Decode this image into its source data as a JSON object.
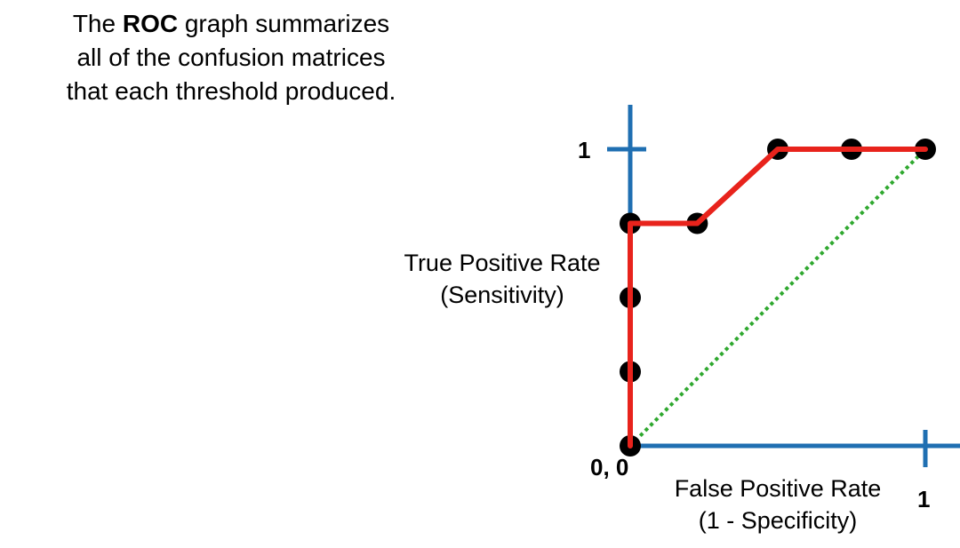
{
  "caption": {
    "line1_pre": "The ",
    "line1_bold": "ROC",
    "line1_post": " graph summarizes",
    "line2": "all of the confusion matrices",
    "line3": "that each threshold produced."
  },
  "chart_data": {
    "type": "line",
    "ylabel_line1": "True Positive Rate",
    "ylabel_line2": "(Sensitivity)",
    "xlabel_line1": "False Positive Rate",
    "xlabel_line2": "(1 - Specificity)",
    "origin_label": "0, 0",
    "y_tick_label": "1",
    "x_tick_label": "1",
    "xlim": [
      0,
      1
    ],
    "ylim": [
      0,
      1
    ],
    "grid": false,
    "series": [
      {
        "x": [
          0,
          0,
          0,
          0,
          0.227,
          0.5,
          0.75,
          1
        ],
        "y": [
          0,
          0.25,
          0.5,
          0.75,
          0.75,
          1,
          1,
          1
        ],
        "color": "#e8231c"
      },
      {
        "x": [
          0,
          1
        ],
        "y": [
          0,
          1
        ],
        "color": "#2fa82f",
        "style": "dotted"
      }
    ],
    "points": [
      [
        0,
        0
      ],
      [
        0,
        0.25
      ],
      [
        0,
        0.5
      ],
      [
        0,
        0.75
      ],
      [
        0.227,
        0.75
      ],
      [
        0.5,
        1
      ],
      [
        0.75,
        1
      ],
      [
        1,
        1
      ]
    ],
    "axis_color": "#1f6fb2",
    "point_color": "#000000"
  }
}
